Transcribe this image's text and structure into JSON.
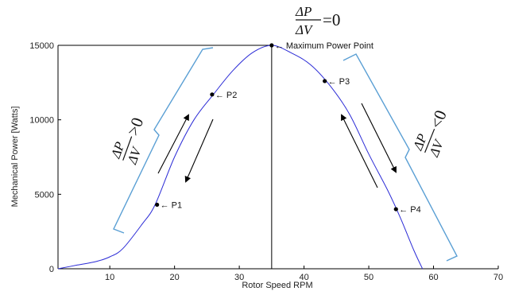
{
  "chart_data": {
    "type": "line",
    "title": "",
    "xlabel": "Rotor Speed RPM",
    "ylabel": "Mechanical Power [Watts]",
    "xlim": [
      2,
      70
    ],
    "ylim": [
      0,
      15000
    ],
    "x_ticks": [
      10,
      20,
      30,
      40,
      50,
      60,
      70
    ],
    "y_ticks": [
      0,
      5000,
      10000,
      15000
    ],
    "x_tick_labels": [
      "10",
      "20",
      "30",
      "40",
      "50",
      "60",
      "70"
    ],
    "y_tick_labels": [
      "0",
      "5000",
      "10000",
      "15000"
    ],
    "grid": false,
    "legend": "none",
    "series": [
      {
        "color": "#2b2bd6",
        "x": [
          2,
          5,
          8,
          10,
          12,
          15,
          17,
          20,
          23,
          26,
          29,
          32,
          35,
          38,
          41,
          44,
          47,
          50,
          53,
          55,
          57,
          58.3
        ],
        "y": [
          0,
          250,
          500,
          800,
          1350,
          3000,
          4300,
          7500,
          10000,
          11700,
          13300,
          14500,
          15000,
          14500,
          13700,
          12300,
          10400,
          7700,
          5200,
          3300,
          1200,
          0
        ]
      }
    ],
    "points": [
      {
        "label": "P1",
        "x": 17.3,
        "y": 4300
      },
      {
        "label": "P2",
        "x": 25.8,
        "y": 11700
      },
      {
        "label": "Maximum Power Point",
        "x": 35.0,
        "y": 15000
      },
      {
        "label": "P3",
        "x": 43.2,
        "y": 12600
      },
      {
        "label": "P4",
        "x": 54.2,
        "y": 4000
      }
    ],
    "annotations": {
      "top_formula": {
        "num": "ΔP",
        "den": "ΔV",
        "rel": "=0"
      },
      "left_formula": {
        "num": "ΔP",
        "den": "ΔV",
        "rel": ">0"
      },
      "right_formula": {
        "num": "ΔP",
        "den": "ΔV",
        "rel": "<0"
      }
    },
    "colors": {
      "curve": "#2b2bd6",
      "brace": "#5a9fd4",
      "axis": "#000000",
      "arrow": "#000000"
    }
  }
}
